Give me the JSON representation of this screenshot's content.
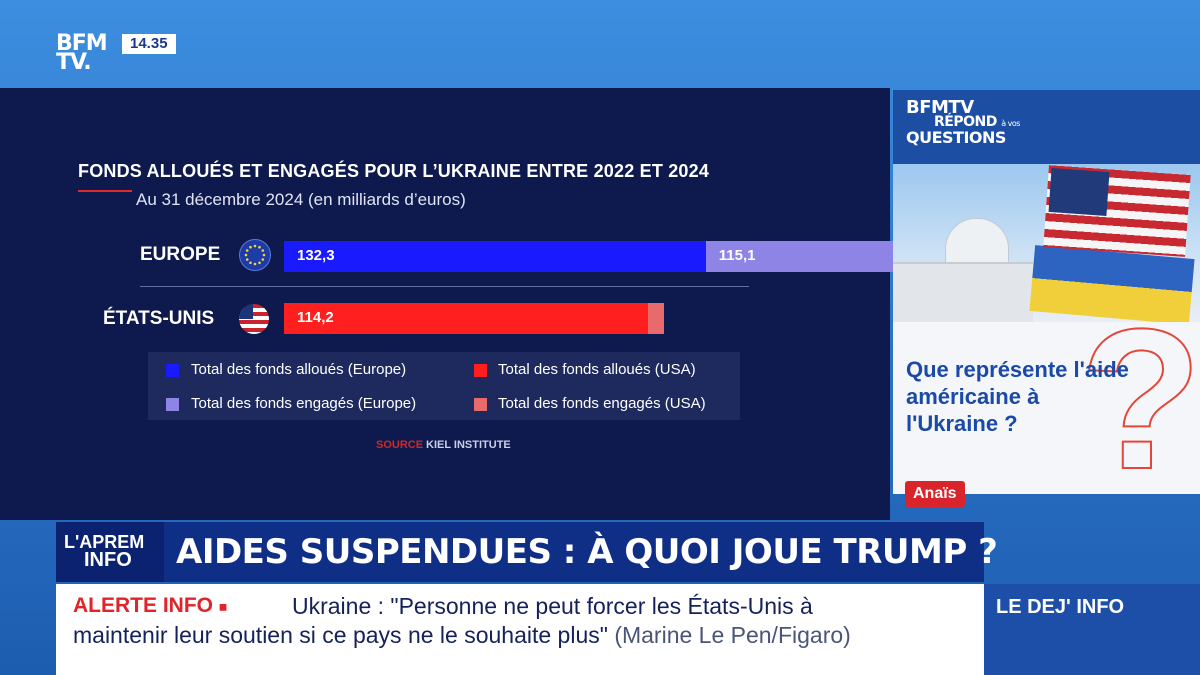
{
  "channel": {
    "logo": "BFM TV.",
    "time": "14.35"
  },
  "chart_data": {
    "type": "bar",
    "orientation": "horizontal",
    "stacked": true,
    "title": "FONDS ALLOUÉS ET ENGAGÉS POUR L’UKRAINE ENTRE 2022 ET 2024",
    "subtitle": "Au 31 décembre 2024 (en milliards d’euros)",
    "categories": [
      "EUROPE",
      "ÉTATS-UNIS"
    ],
    "series": [
      {
        "name": "Total des fonds alloués",
        "values": [
          132.3,
          114.2
        ],
        "labels": [
          "132,3",
          "114,2"
        ]
      },
      {
        "name": "Total des fonds engagés",
        "values": [
          115.1,
          5.0
        ],
        "labels": [
          "115,1",
          ""
        ]
      }
    ],
    "colors": {
      "europe_alloues": "#1a1aff",
      "europe_engages": "#8e84e6",
      "usa_alloues": "#ff1f1f",
      "usa_engages": "#e86b6b"
    },
    "xlim": [
      0,
      250
    ],
    "legend": {
      "placement": "bottom",
      "items": [
        {
          "label": "Total des fonds alloués (Europe)",
          "color": "#1a1aff"
        },
        {
          "label": "Total des fonds alloués (USA)",
          "color": "#ff1f1f"
        },
        {
          "label": "Total des fonds engagés (Europe)",
          "color": "#8e84e6"
        },
        {
          "label": "Total des fonds engagés (USA)",
          "color": "#e86b6b"
        }
      ]
    },
    "source_label": "SOURCE",
    "source": "KIEL INSTITUTE",
    "icons": [
      "eu-flag-icon",
      "us-flag-icon"
    ]
  },
  "side_panel": {
    "logo_lines": [
      "BFMTV",
      "RÉPOND",
      "QUESTIONS"
    ],
    "logo_small": "à vos",
    "question": "Que représente l'aide américaine à l'Ukraine ?",
    "presenter": "Anaïs",
    "question_mark": "?"
  },
  "headline": {
    "show_logo_l1": "L'APREM",
    "show_logo_l2": "INFO",
    "text": "AIDES SUSPENDUES : À QUOI JOUE TRUMP ?"
  },
  "ticker": {
    "label": "ALERTE INFO",
    "line1": "Ukraine : \"Personne ne peut forcer les États-Unis à",
    "line2": "maintenir leur soutien si ce pays ne le souhaite plus\"",
    "source": "(Marine Le Pen/Figaro)",
    "program": "LE DEJ' INFO"
  }
}
